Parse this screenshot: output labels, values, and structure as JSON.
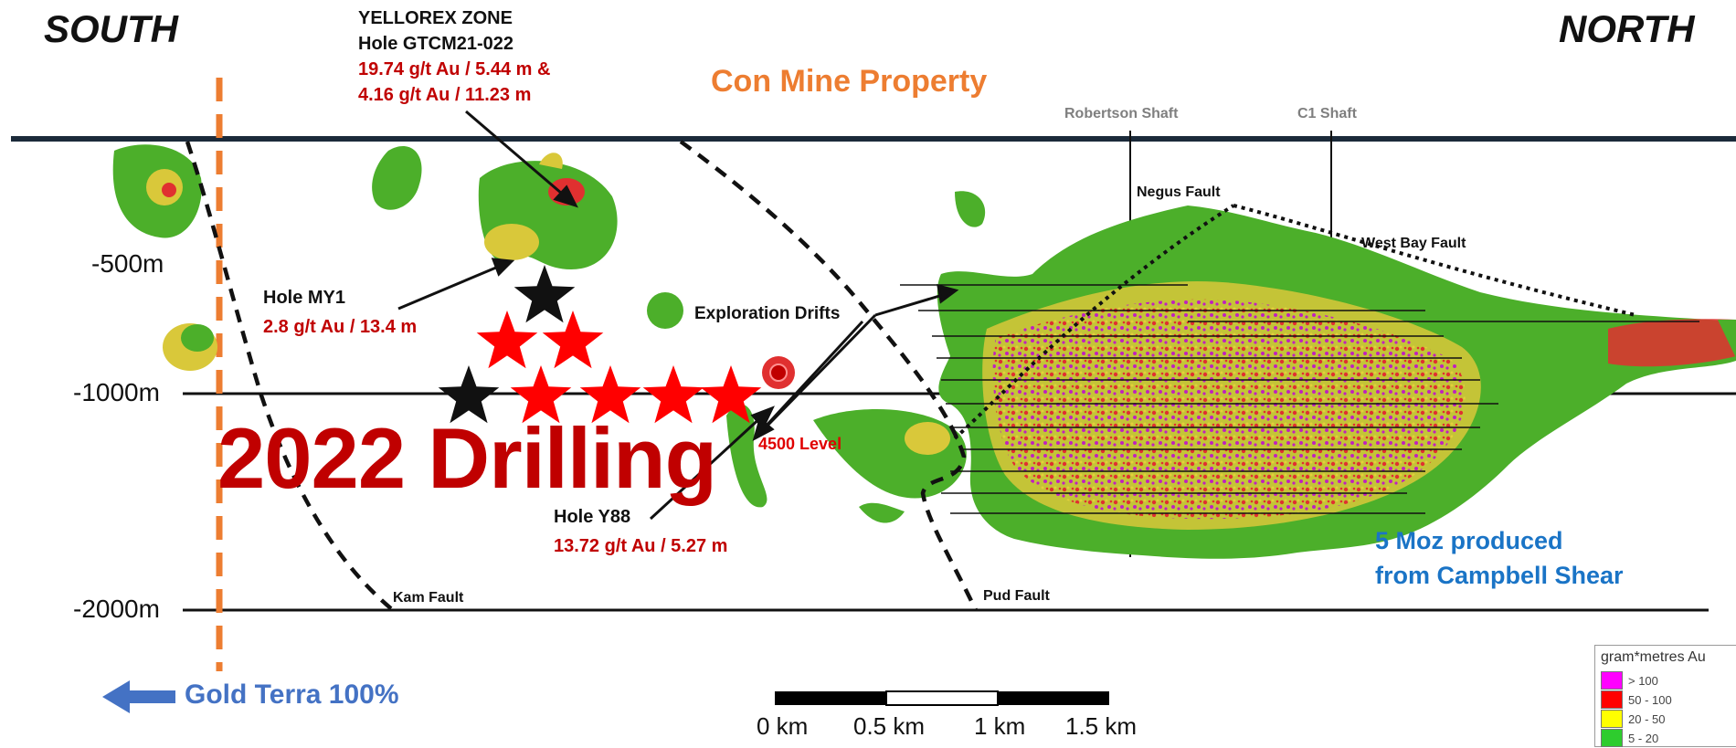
{
  "directions": {
    "south": "SOUTH",
    "north": "NORTH"
  },
  "property_label": "Con Mine Property",
  "depth_labels": [
    "-500m",
    "-1000m",
    "-2000m"
  ],
  "yellorex": {
    "zone": "YELLOREX ZONE",
    "hole": "Hole  GTCM21-022",
    "assay_1": "19.74 g/t Au / 5.44 m &",
    "assay_2": "4.16 g/t Au / 11.23 m"
  },
  "hole_my1": {
    "label": "Hole MY1",
    "assay": "2.8 g/t Au / 13.4 m"
  },
  "hole_y88": {
    "label": "Hole Y88",
    "assay": "13.72 g/t Au / 5.27 m"
  },
  "drilling_label": "2022 Drilling",
  "exploration_drifts": "Exploration Drifts",
  "level_label": "4500 Level",
  "faults": {
    "negus": "Negus Fault",
    "west_bay": "West Bay Fault",
    "kam": "Kam Fault",
    "pud": "Pud Fault"
  },
  "shafts": {
    "robertson": "Robertson Shaft",
    "c1": "C1 Shaft"
  },
  "production": {
    "line_1": "5 Moz produced",
    "line_2": "from Campbell Shear"
  },
  "gold_terra": "Gold Terra 100%",
  "scale_bar": {
    "labels": [
      "0 km",
      "0.5 km",
      "1 km",
      "1.5 km"
    ]
  },
  "legend": {
    "title": "gram*metres Au",
    "items": [
      {
        "label": "> 100",
        "color": "#ff00ff"
      },
      {
        "label": "50 - 100",
        "color": "#ff0000"
      },
      {
        "label": "20 - 50",
        "color": "#ffff00"
      },
      {
        "label": "5 - 20",
        "color": "#2ecc2e"
      }
    ]
  },
  "colors": {
    "orebody_green": "#4caf2a",
    "orebody_yellow": "#d9c83a",
    "orebody_red": "#e03030",
    "orebody_magenta": "#c020c0",
    "drill_star": "#ff0000",
    "completed_hole_star": "#111111",
    "boundary_dash": "#ed7d31"
  }
}
